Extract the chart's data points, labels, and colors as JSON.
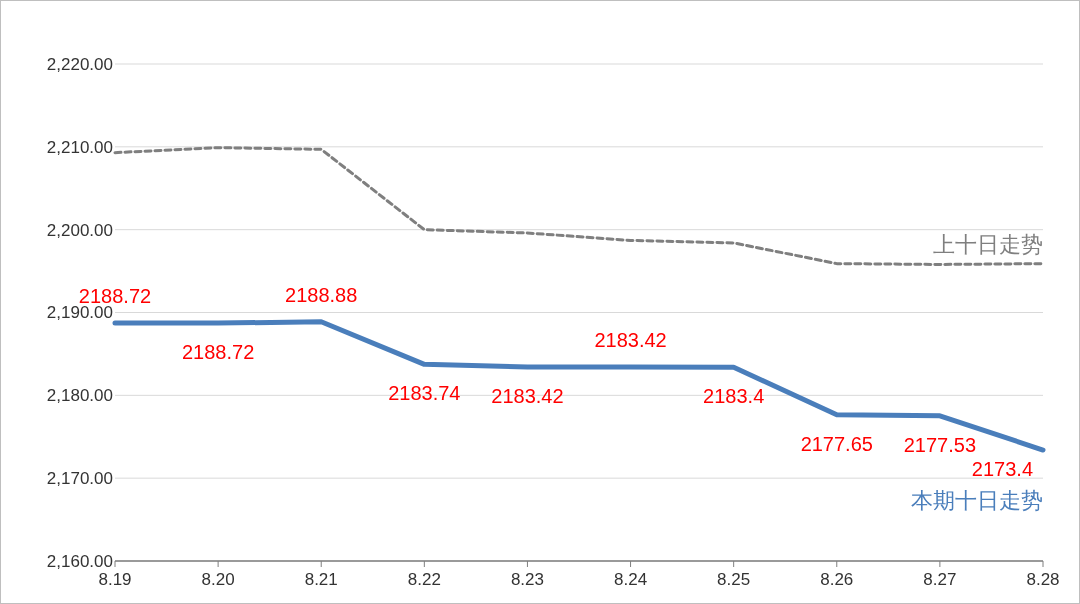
{
  "chart_data": {
    "type": "line",
    "categories": [
      "8.19",
      "8.20",
      "8.21",
      "8.22",
      "8.23",
      "8.24",
      "8.25",
      "8.26",
      "8.27",
      "8.28"
    ],
    "series": [
      {
        "name": "上十日走势",
        "color": "#7f7f7f",
        "line_style": "dashed",
        "values": [
          2209.3,
          2209.9,
          2209.7,
          2200.0,
          2199.6,
          2198.7,
          2198.4,
          2195.9,
          2195.8,
          2195.9
        ]
      },
      {
        "name": "本期十日走势",
        "color": "#4a7ebb",
        "line_style": "solid",
        "data_labels": true,
        "values": [
          2188.72,
          2188.72,
          2188.88,
          2183.74,
          2183.42,
          2183.42,
          2183.4,
          2177.65,
          2177.53,
          2173.4
        ]
      }
    ],
    "ylim": [
      2160,
      2220
    ],
    "yticks": [
      {
        "value": 2160,
        "label": "2,160.00"
      },
      {
        "value": 2170,
        "label": "2,170.00"
      },
      {
        "value": 2180,
        "label": "2,180.00"
      },
      {
        "value": 2190,
        "label": "2,190.00"
      },
      {
        "value": 2200,
        "label": "2,200.00"
      },
      {
        "value": 2210,
        "label": "2,210.00"
      },
      {
        "value": 2220,
        "label": "2,220.00"
      }
    ],
    "grid": "y",
    "marker": "none"
  }
}
